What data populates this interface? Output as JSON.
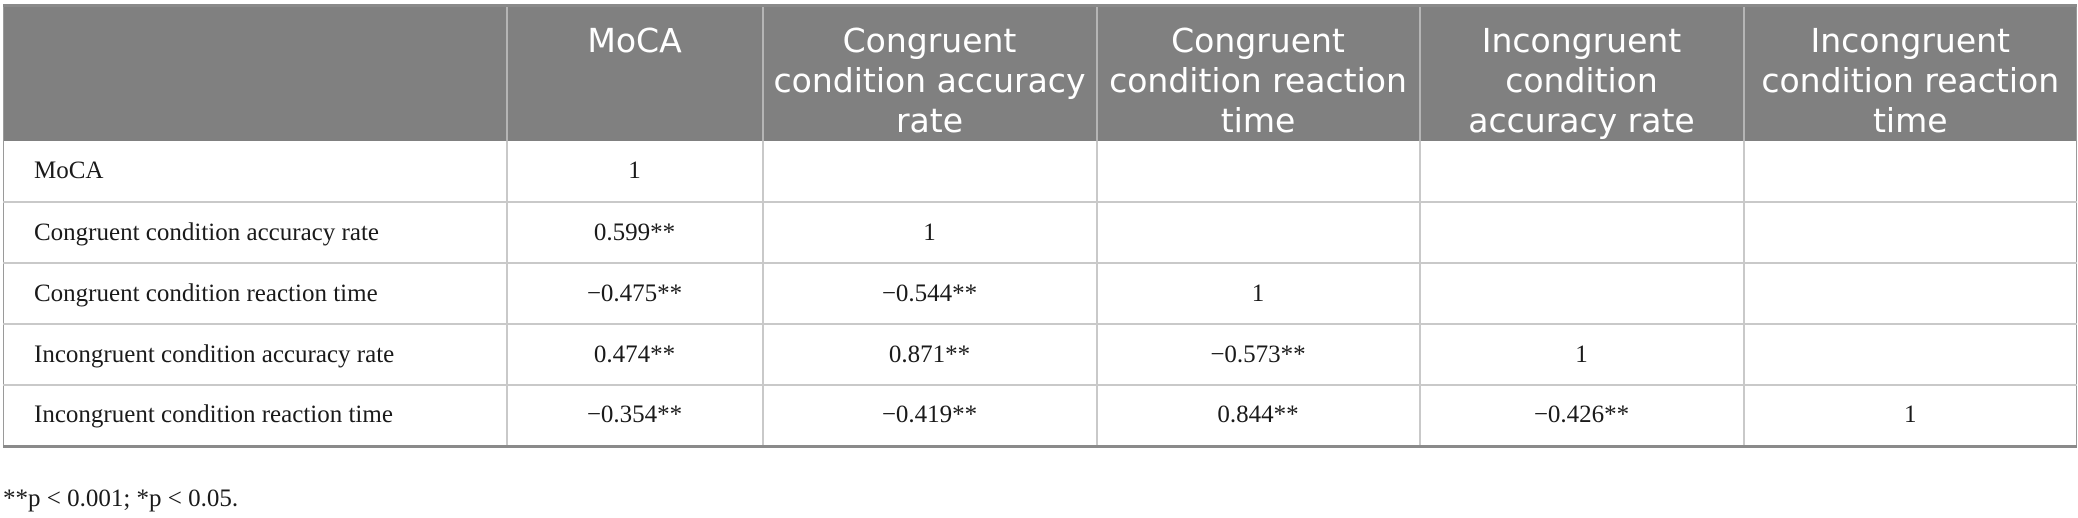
{
  "table": {
    "headers": [
      "",
      "MoCA",
      "Congruent condition accuracy rate",
      "Congruent condition reaction time",
      "Incongruent condition accuracy rate",
      "Incongruent condition reaction time"
    ],
    "rows": [
      {
        "label": "MoCA",
        "cells": [
          "1",
          "",
          "",
          "",
          ""
        ]
      },
      {
        "label": "Congruent condition accuracy rate",
        "cells": [
          "0.599**",
          "1",
          "",
          "",
          ""
        ]
      },
      {
        "label": "Congruent condition reaction time",
        "cells": [
          "−0.475**",
          "−0.544**",
          "1",
          "",
          ""
        ]
      },
      {
        "label": "Incongruent condition accuracy rate",
        "cells": [
          "0.474**",
          "0.871**",
          "−0.573**",
          "1",
          ""
        ]
      },
      {
        "label": "Incongruent condition reaction time",
        "cells": [
          "−0.354**",
          "−0.419**",
          "0.844**",
          "−0.426**",
          "1"
        ]
      }
    ]
  },
  "footnote": "**p < 0.001; *p < 0.05."
}
